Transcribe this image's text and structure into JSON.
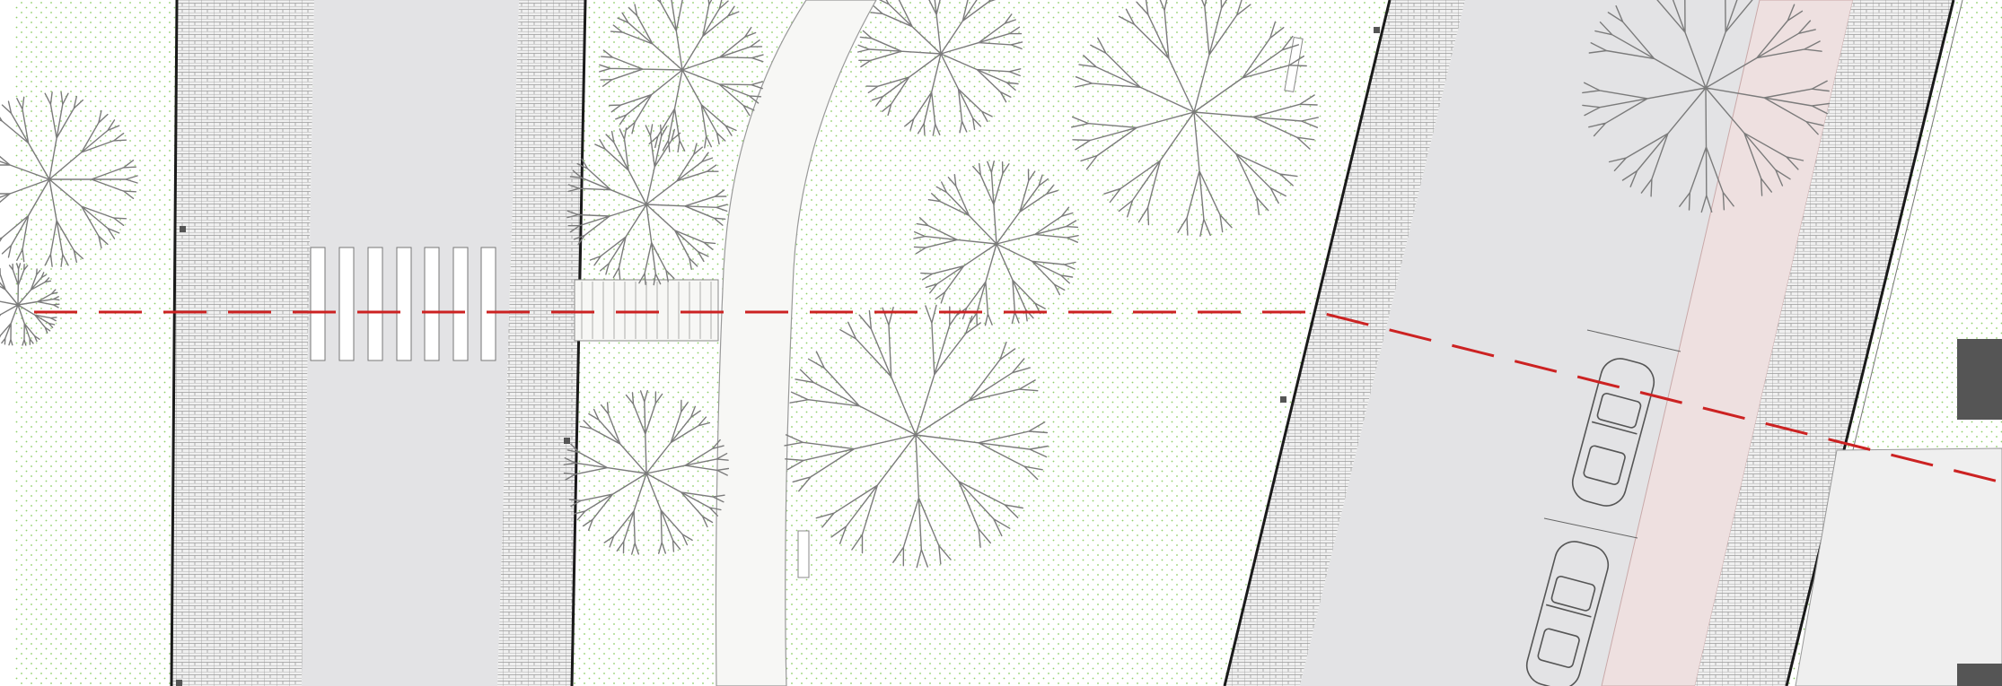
{
  "drawing": {
    "type": "site-plan",
    "colors": {
      "grass_dots": "#8fcf6a",
      "road": "#e3e3e5",
      "paving_fill": "#f0f0f0",
      "paving_grid": "#9a9a9a",
      "footpath": "#f7f7f5",
      "bike_lane": "#eee0e0",
      "curb": "#1a1a1a",
      "section_line": "#cc2222",
      "building": "#555555",
      "tree_stroke": "#7b7b7b"
    },
    "icons": [
      "tree-icon",
      "car-icon",
      "bench-icon",
      "crosswalk-stripes",
      "section-cut-line",
      "building-block"
    ]
  }
}
